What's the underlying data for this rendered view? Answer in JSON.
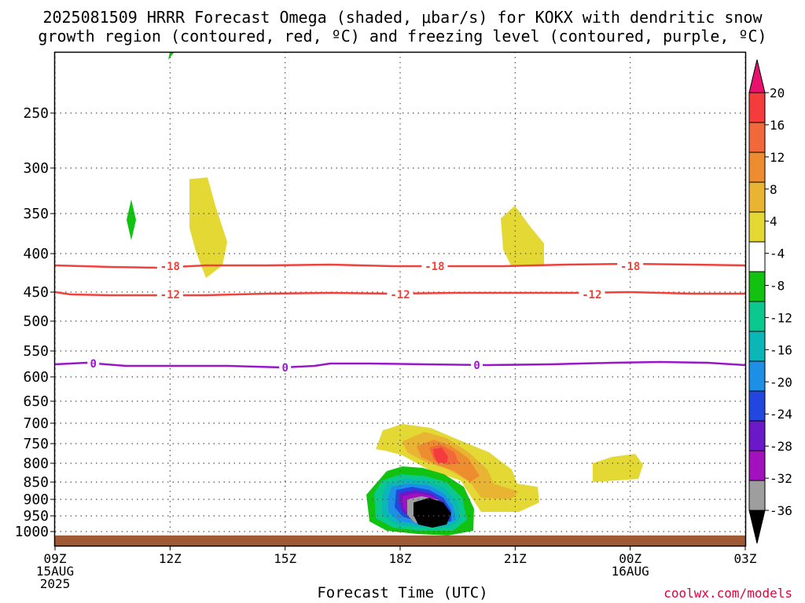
{
  "title_line1": "2025081509 HRRR Forecast Omega (shaded, μbar/s) for KOKX with dendritic snow",
  "title_line2": "growth region (contoured, red, ºC) and freezing level (contoured, purple, ºC)",
  "credit": "coolwx.com/models",
  "chart_data": {
    "type": "time-height cross section",
    "xlabel": "Forecast Time (UTC)",
    "x_ticks": [
      {
        "label": "09Z",
        "sub": [
          "15AUG",
          "2025"
        ],
        "hour": 0
      },
      {
        "label": "12Z",
        "sub": [],
        "hour": 3
      },
      {
        "label": "15Z",
        "sub": [],
        "hour": 6
      },
      {
        "label": "18Z",
        "sub": [],
        "hour": 9
      },
      {
        "label": "21Z",
        "sub": [],
        "hour": 12
      },
      {
        "label": "00Z",
        "sub": [
          "16AUG"
        ],
        "hour": 15
      },
      {
        "label": "03Z",
        "sub": [],
        "hour": 18
      }
    ],
    "y_ticks_hpa": [
      250,
      300,
      350,
      400,
      450,
      500,
      550,
      600,
      650,
      700,
      750,
      800,
      850,
      900,
      950,
      1000
    ],
    "colorbar": {
      "labels": [
        "20",
        "16",
        "12",
        "8",
        "4",
        "-4",
        "-8",
        "-12",
        "-16",
        "-20",
        "-24",
        "-28",
        "-32",
        "-36"
      ],
      "bins": [
        {
          "color": "#e8116e"
        },
        {
          "color": "#f53c3c"
        },
        {
          "color": "#f2683a"
        },
        {
          "color": "#ee8d2f"
        },
        {
          "color": "#e8b432"
        },
        {
          "color": "#e4d934"
        },
        {
          "color": "#ffffff"
        },
        {
          "color": "#11c211"
        },
        {
          "color": "#0bc98e"
        },
        {
          "color": "#0ab6b6"
        },
        {
          "color": "#1e8fe6"
        },
        {
          "color": "#2247e0"
        },
        {
          "color": "#6a18c8"
        },
        {
          "color": "#a311bf"
        },
        {
          "color": "#9e9e9e"
        },
        {
          "color": "#000000"
        }
      ]
    },
    "dgz_contours": [
      {
        "value": "-18",
        "pressure_hpa": 414,
        "labels_at_hour": [
          3,
          9.9,
          15
        ]
      },
      {
        "value": "-12",
        "pressure_hpa": 455,
        "labels_at_hour": [
          3,
          9,
          14
        ]
      }
    ],
    "freezing_level": {
      "value": "0",
      "labels_at_hour": [
        1,
        6,
        11
      ]
    },
    "contour_colors": {
      "dgz": "#f0423c",
      "freezing": "#9a17c8"
    },
    "terrain_color": "#9e5a34"
  }
}
